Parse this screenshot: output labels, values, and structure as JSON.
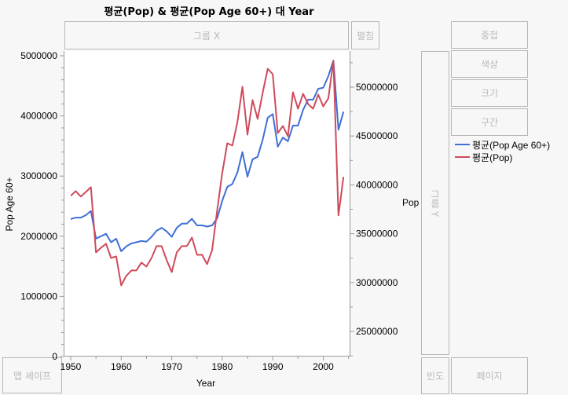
{
  "title": "평균(Pop) & 평균(Pop Age 60+) 대 Year",
  "zones": {
    "group_x": "그룹 X",
    "wrap": "펼침",
    "overlay": "중첩",
    "color": "색상",
    "size": "크기",
    "interval": "구간",
    "group_y": "그룹 Y",
    "map_shape": "맵 셰이프",
    "freq": "빈도",
    "page": "페이지"
  },
  "legend": [
    {
      "label": "평균(Pop Age 60+)",
      "color": "#3f6fd8"
    },
    {
      "label": "평균(Pop)",
      "color": "#d04a5a"
    }
  ],
  "chart_data": {
    "type": "line",
    "title": "평균(Pop) & 평균(Pop Age 60+) 대 Year",
    "xlabel": "Year",
    "ylabel": "Pop Age 60+",
    "y2label": "Pop",
    "xlim": [
      1948.6,
      2005.5
    ],
    "ylim": [
      0,
      5000000
    ],
    "y2lim": [
      23000000,
      53500000
    ],
    "x_ticks": [
      1950,
      1960,
      1970,
      1980,
      1990,
      2000
    ],
    "y_ticks": [
      0,
      1000000,
      2000000,
      3000000,
      4000000,
      5000000
    ],
    "y2_ticks": [
      25000000,
      30000000,
      35000000,
      40000000,
      45000000,
      50000000
    ],
    "x": [
      1950,
      1951,
      1952,
      1953,
      1954,
      1955,
      1956,
      1957,
      1958,
      1959,
      1960,
      1961,
      1962,
      1963,
      1964,
      1965,
      1966,
      1967,
      1968,
      1969,
      1970,
      1971,
      1972,
      1973,
      1974,
      1975,
      1976,
      1977,
      1978,
      1979,
      1980,
      1981,
      1982,
      1983,
      1984,
      1985,
      1986,
      1987,
      1988,
      1989,
      1990,
      1991,
      1992,
      1993,
      1994,
      1995,
      1996,
      1997,
      1998,
      1999,
      2000,
      2001,
      2002,
      2003,
      2004
    ],
    "series": [
      {
        "name": "평균(Pop Age 60+)",
        "axis": "left",
        "color": "#3f6fd8",
        "values": [
          2285000,
          2310000,
          2310000,
          2350000,
          2420000,
          1960000,
          2000000,
          2040000,
          1900000,
          1960000,
          1750000,
          1830000,
          1880000,
          1900000,
          1920000,
          1910000,
          1990000,
          2090000,
          2140000,
          2080000,
          1990000,
          2140000,
          2210000,
          2210000,
          2290000,
          2180000,
          2180000,
          2160000,
          2180000,
          2300000,
          2590000,
          2820000,
          2870000,
          3060000,
          3400000,
          2990000,
          3280000,
          3320000,
          3600000,
          3970000,
          4030000,
          3490000,
          3640000,
          3580000,
          3840000,
          3840000,
          4100000,
          4270000,
          4270000,
          4450000,
          4470000,
          4660000,
          4920000,
          3770000,
          4070000
        ]
      },
      {
        "name": "평균(Pop)",
        "axis": "right",
        "color": "#d04a5a",
        "values": [
          38880000,
          39360000,
          38800000,
          39280000,
          39760000,
          33090000,
          33570000,
          33970000,
          32520000,
          32680000,
          29710000,
          30680000,
          31240000,
          31240000,
          32040000,
          31640000,
          32520000,
          33730000,
          33730000,
          32280000,
          31070000,
          33090000,
          33730000,
          33730000,
          34610000,
          32840000,
          32840000,
          31880000,
          33330000,
          37430000,
          41210000,
          44260000,
          44020000,
          46430000,
          50040000,
          45140000,
          48680000,
          46750000,
          49400000,
          51890000,
          51330000,
          45300000,
          46030000,
          44980000,
          49480000,
          47790000,
          49320000,
          48270000,
          47790000,
          49240000,
          48030000,
          48840000,
          52700000,
          36870000,
          40810000
        ]
      }
    ]
  }
}
